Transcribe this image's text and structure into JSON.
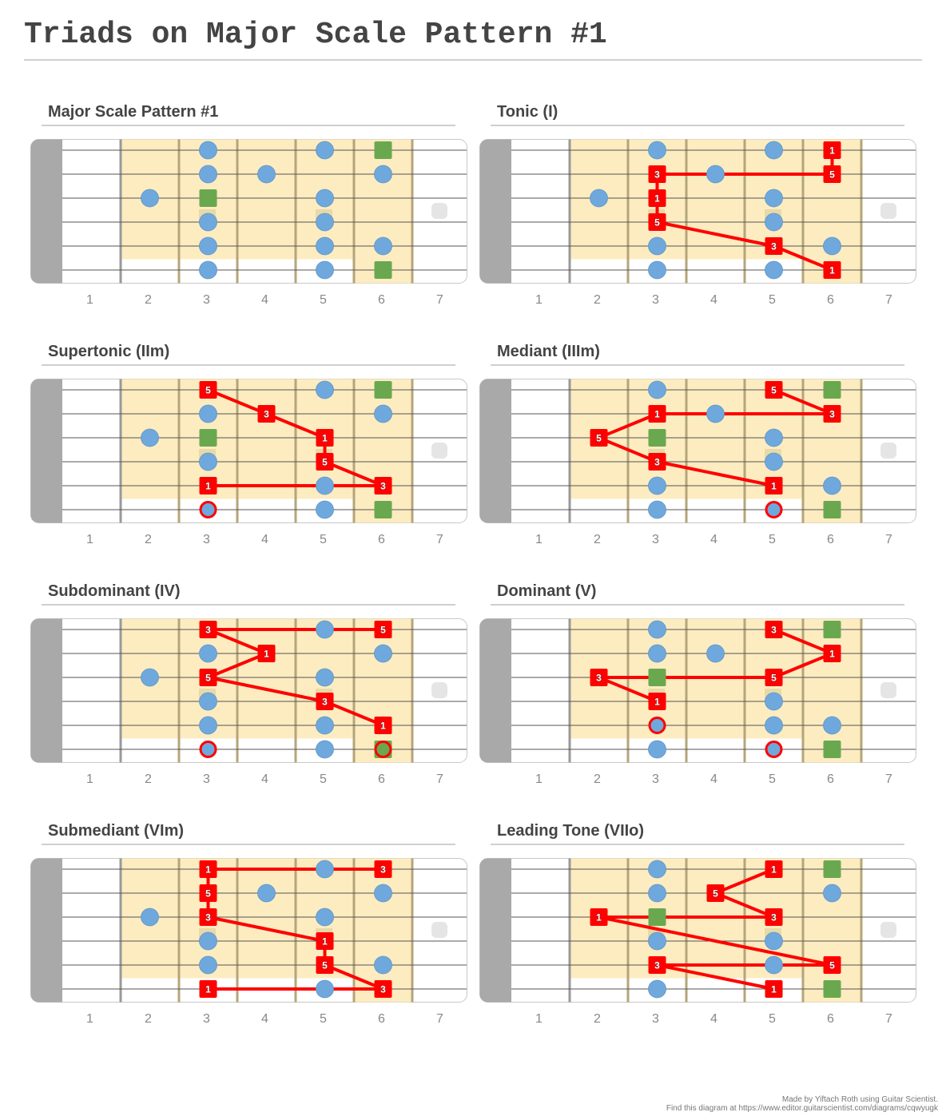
{
  "title": "Triads on Major Scale Pattern #1",
  "colors": {
    "scale_note": "#6fa8dc",
    "root_note": "#6aa84f",
    "triad_note": "#ff0000",
    "pattern_bg": "#fcecc0",
    "nut": "#a9a9a9"
  },
  "fret_numbers": [
    "1",
    "2",
    "3",
    "4",
    "5",
    "6",
    "7"
  ],
  "diagrams": [
    {
      "title": "Major Scale Pattern #1",
      "notes": [
        {
          "fret": 3,
          "string": 1,
          "type": "scale"
        },
        {
          "fret": 5,
          "string": 1,
          "type": "scale"
        },
        {
          "fret": 6,
          "string": 1,
          "type": "root"
        },
        {
          "fret": 3,
          "string": 2,
          "type": "scale"
        },
        {
          "fret": 4,
          "string": 2,
          "type": "scale"
        },
        {
          "fret": 6,
          "string": 2,
          "type": "scale"
        },
        {
          "fret": 2,
          "string": 3,
          "type": "scale"
        },
        {
          "fret": 3,
          "string": 3,
          "type": "root"
        },
        {
          "fret": 5,
          "string": 3,
          "type": "scale"
        },
        {
          "fret": 3,
          "string": 4,
          "type": "scale"
        },
        {
          "fret": 5,
          "string": 4,
          "type": "scale"
        },
        {
          "fret": 3,
          "string": 5,
          "type": "scale"
        },
        {
          "fret": 5,
          "string": 5,
          "type": "scale"
        },
        {
          "fret": 6,
          "string": 5,
          "type": "scale"
        },
        {
          "fret": 3,
          "string": 6,
          "type": "scale"
        },
        {
          "fret": 5,
          "string": 6,
          "type": "scale"
        },
        {
          "fret": 6,
          "string": 6,
          "type": "root"
        }
      ],
      "lines": []
    },
    {
      "title": "Tonic (I)",
      "notes": [
        {
          "fret": 3,
          "string": 1,
          "type": "scale"
        },
        {
          "fret": 5,
          "string": 1,
          "type": "scale"
        },
        {
          "fret": 6,
          "string": 1,
          "type": "triad",
          "label": "1"
        },
        {
          "fret": 3,
          "string": 2,
          "type": "triad",
          "label": "3"
        },
        {
          "fret": 4,
          "string": 2,
          "type": "scale"
        },
        {
          "fret": 6,
          "string": 2,
          "type": "triad",
          "label": "5"
        },
        {
          "fret": 2,
          "string": 3,
          "type": "scale"
        },
        {
          "fret": 3,
          "string": 3,
          "type": "triad",
          "label": "1"
        },
        {
          "fret": 5,
          "string": 3,
          "type": "scale"
        },
        {
          "fret": 3,
          "string": 4,
          "type": "triad",
          "label": "5"
        },
        {
          "fret": 5,
          "string": 4,
          "type": "scale"
        },
        {
          "fret": 3,
          "string": 5,
          "type": "scale"
        },
        {
          "fret": 5,
          "string": 5,
          "type": "triad",
          "label": "3"
        },
        {
          "fret": 6,
          "string": 5,
          "type": "scale"
        },
        {
          "fret": 3,
          "string": 6,
          "type": "scale"
        },
        {
          "fret": 5,
          "string": 6,
          "type": "scale"
        },
        {
          "fret": 6,
          "string": 6,
          "type": "triad",
          "label": "1"
        }
      ],
      "lines": [
        [
          [
            6,
            1
          ],
          [
            6,
            2
          ]
        ],
        [
          [
            3,
            2
          ],
          [
            6,
            2
          ]
        ],
        [
          [
            3,
            2
          ],
          [
            3,
            3
          ]
        ],
        [
          [
            3,
            3
          ],
          [
            3,
            4
          ]
        ],
        [
          [
            3,
            4
          ],
          [
            5,
            5
          ]
        ],
        [
          [
            5,
            5
          ],
          [
            6,
            6
          ]
        ]
      ]
    },
    {
      "title": "Supertonic (IIm)",
      "notes": [
        {
          "fret": 3,
          "string": 1,
          "type": "triad",
          "label": "5"
        },
        {
          "fret": 5,
          "string": 1,
          "type": "scale"
        },
        {
          "fret": 6,
          "string": 1,
          "type": "root"
        },
        {
          "fret": 3,
          "string": 2,
          "type": "scale"
        },
        {
          "fret": 4,
          "string": 2,
          "type": "triad",
          "label": "3"
        },
        {
          "fret": 6,
          "string": 2,
          "type": "scale"
        },
        {
          "fret": 2,
          "string": 3,
          "type": "scale"
        },
        {
          "fret": 3,
          "string": 3,
          "type": "root"
        },
        {
          "fret": 5,
          "string": 3,
          "type": "triad",
          "label": "1"
        },
        {
          "fret": 3,
          "string": 4,
          "type": "scale"
        },
        {
          "fret": 5,
          "string": 4,
          "type": "triad",
          "label": "5"
        },
        {
          "fret": 3,
          "string": 5,
          "type": "triad",
          "label": "1"
        },
        {
          "fret": 5,
          "string": 5,
          "type": "scale"
        },
        {
          "fret": 6,
          "string": 5,
          "type": "triad",
          "label": "3"
        },
        {
          "fret": 3,
          "string": 6,
          "type": "scale",
          "ring": true
        },
        {
          "fret": 5,
          "string": 6,
          "type": "scale"
        },
        {
          "fret": 6,
          "string": 6,
          "type": "root"
        }
      ],
      "lines": [
        [
          [
            3,
            1
          ],
          [
            4,
            2
          ]
        ],
        [
          [
            4,
            2
          ],
          [
            5,
            3
          ]
        ],
        [
          [
            5,
            3
          ],
          [
            5,
            4
          ]
        ],
        [
          [
            5,
            4
          ],
          [
            6,
            5
          ]
        ],
        [
          [
            3,
            5
          ],
          [
            6,
            5
          ]
        ]
      ]
    },
    {
      "title": "Mediant (IIIm)",
      "notes": [
        {
          "fret": 3,
          "string": 1,
          "type": "scale"
        },
        {
          "fret": 5,
          "string": 1,
          "type": "triad",
          "label": "5"
        },
        {
          "fret": 6,
          "string": 1,
          "type": "root"
        },
        {
          "fret": 3,
          "string": 2,
          "type": "triad",
          "label": "1"
        },
        {
          "fret": 4,
          "string": 2,
          "type": "scale"
        },
        {
          "fret": 6,
          "string": 2,
          "type": "triad",
          "label": "3"
        },
        {
          "fret": 2,
          "string": 3,
          "type": "triad",
          "label": "5"
        },
        {
          "fret": 3,
          "string": 3,
          "type": "root"
        },
        {
          "fret": 5,
          "string": 3,
          "type": "scale"
        },
        {
          "fret": 3,
          "string": 4,
          "type": "triad",
          "label": "3"
        },
        {
          "fret": 5,
          "string": 4,
          "type": "scale"
        },
        {
          "fret": 3,
          "string": 5,
          "type": "scale"
        },
        {
          "fret": 5,
          "string": 5,
          "type": "triad",
          "label": "1"
        },
        {
          "fret": 6,
          "string": 5,
          "type": "scale"
        },
        {
          "fret": 3,
          "string": 6,
          "type": "scale"
        },
        {
          "fret": 5,
          "string": 6,
          "type": "scale",
          "ring": true
        },
        {
          "fret": 6,
          "string": 6,
          "type": "root"
        }
      ],
      "lines": [
        [
          [
            5,
            1
          ],
          [
            6,
            2
          ]
        ],
        [
          [
            3,
            2
          ],
          [
            6,
            2
          ]
        ],
        [
          [
            3,
            2
          ],
          [
            2,
            3
          ]
        ],
        [
          [
            2,
            3
          ],
          [
            3,
            4
          ]
        ],
        [
          [
            3,
            4
          ],
          [
            5,
            5
          ]
        ]
      ]
    },
    {
      "title": "Subdominant (IV)",
      "notes": [
        {
          "fret": 3,
          "string": 1,
          "type": "triad",
          "label": "3"
        },
        {
          "fret": 5,
          "string": 1,
          "type": "scale"
        },
        {
          "fret": 6,
          "string": 1,
          "type": "triad",
          "label": "5"
        },
        {
          "fret": 3,
          "string": 2,
          "type": "scale"
        },
        {
          "fret": 4,
          "string": 2,
          "type": "triad",
          "label": "1"
        },
        {
          "fret": 6,
          "string": 2,
          "type": "scale"
        },
        {
          "fret": 2,
          "string": 3,
          "type": "scale"
        },
        {
          "fret": 3,
          "string": 3,
          "type": "triad",
          "label": "5"
        },
        {
          "fret": 5,
          "string": 3,
          "type": "scale"
        },
        {
          "fret": 3,
          "string": 4,
          "type": "scale"
        },
        {
          "fret": 5,
          "string": 4,
          "type": "triad",
          "label": "3"
        },
        {
          "fret": 3,
          "string": 5,
          "type": "scale"
        },
        {
          "fret": 5,
          "string": 5,
          "type": "scale"
        },
        {
          "fret": 6,
          "string": 5,
          "type": "triad",
          "label": "1"
        },
        {
          "fret": 3,
          "string": 6,
          "type": "scale",
          "ring": true
        },
        {
          "fret": 5,
          "string": 6,
          "type": "scale"
        },
        {
          "fret": 6,
          "string": 6,
          "type": "root",
          "ring": true
        }
      ],
      "lines": [
        [
          [
            3,
            1
          ],
          [
            6,
            1
          ]
        ],
        [
          [
            3,
            1
          ],
          [
            4,
            2
          ]
        ],
        [
          [
            4,
            2
          ],
          [
            3,
            3
          ]
        ],
        [
          [
            3,
            3
          ],
          [
            5,
            4
          ]
        ],
        [
          [
            5,
            4
          ],
          [
            6,
            5
          ]
        ]
      ]
    },
    {
      "title": "Dominant (V)",
      "notes": [
        {
          "fret": 3,
          "string": 1,
          "type": "scale"
        },
        {
          "fret": 5,
          "string": 1,
          "type": "triad",
          "label": "3"
        },
        {
          "fret": 6,
          "string": 1,
          "type": "root"
        },
        {
          "fret": 3,
          "string": 2,
          "type": "scale"
        },
        {
          "fret": 4,
          "string": 2,
          "type": "scale"
        },
        {
          "fret": 6,
          "string": 2,
          "type": "triad",
          "label": "1"
        },
        {
          "fret": 2,
          "string": 3,
          "type": "triad",
          "label": "3"
        },
        {
          "fret": 3,
          "string": 3,
          "type": "root"
        },
        {
          "fret": 5,
          "string": 3,
          "type": "triad",
          "label": "5"
        },
        {
          "fret": 3,
          "string": 4,
          "type": "triad",
          "label": "1"
        },
        {
          "fret": 5,
          "string": 4,
          "type": "scale"
        },
        {
          "fret": 3,
          "string": 5,
          "type": "scale",
          "ring": true
        },
        {
          "fret": 5,
          "string": 5,
          "type": "scale"
        },
        {
          "fret": 6,
          "string": 5,
          "type": "scale"
        },
        {
          "fret": 3,
          "string": 6,
          "type": "scale"
        },
        {
          "fret": 5,
          "string": 6,
          "type": "scale",
          "ring": true
        },
        {
          "fret": 6,
          "string": 6,
          "type": "root"
        }
      ],
      "lines": [
        [
          [
            5,
            1
          ],
          [
            6,
            2
          ]
        ],
        [
          [
            6,
            2
          ],
          [
            5,
            3
          ]
        ],
        [
          [
            2,
            3
          ],
          [
            5,
            3
          ]
        ],
        [
          [
            2,
            3
          ],
          [
            3,
            4
          ]
        ]
      ]
    },
    {
      "title": "Submediant (VIm)",
      "notes": [
        {
          "fret": 3,
          "string": 1,
          "type": "triad",
          "label": "1"
        },
        {
          "fret": 5,
          "string": 1,
          "type": "scale"
        },
        {
          "fret": 6,
          "string": 1,
          "type": "triad",
          "label": "3"
        },
        {
          "fret": 3,
          "string": 2,
          "type": "triad",
          "label": "5"
        },
        {
          "fret": 4,
          "string": 2,
          "type": "scale"
        },
        {
          "fret": 6,
          "string": 2,
          "type": "scale"
        },
        {
          "fret": 2,
          "string": 3,
          "type": "scale"
        },
        {
          "fret": 3,
          "string": 3,
          "type": "triad",
          "label": "3"
        },
        {
          "fret": 5,
          "string": 3,
          "type": "scale"
        },
        {
          "fret": 3,
          "string": 4,
          "type": "scale"
        },
        {
          "fret": 5,
          "string": 4,
          "type": "triad",
          "label": "1"
        },
        {
          "fret": 3,
          "string": 5,
          "type": "scale"
        },
        {
          "fret": 5,
          "string": 5,
          "type": "triad",
          "label": "5"
        },
        {
          "fret": 6,
          "string": 5,
          "type": "scale"
        },
        {
          "fret": 3,
          "string": 6,
          "type": "triad",
          "label": "1"
        },
        {
          "fret": 5,
          "string": 6,
          "type": "scale"
        },
        {
          "fret": 6,
          "string": 6,
          "type": "triad",
          "label": "3"
        }
      ],
      "lines": [
        [
          [
            3,
            1
          ],
          [
            6,
            1
          ]
        ],
        [
          [
            3,
            1
          ],
          [
            3,
            2
          ]
        ],
        [
          [
            3,
            2
          ],
          [
            3,
            3
          ]
        ],
        [
          [
            3,
            3
          ],
          [
            5,
            4
          ]
        ],
        [
          [
            5,
            4
          ],
          [
            5,
            5
          ]
        ],
        [
          [
            5,
            5
          ],
          [
            6,
            6
          ]
        ],
        [
          [
            3,
            6
          ],
          [
            6,
            6
          ]
        ]
      ]
    },
    {
      "title": "Leading Tone (VIIo)",
      "notes": [
        {
          "fret": 3,
          "string": 1,
          "type": "scale"
        },
        {
          "fret": 5,
          "string": 1,
          "type": "triad",
          "label": "1"
        },
        {
          "fret": 6,
          "string": 1,
          "type": "root"
        },
        {
          "fret": 3,
          "string": 2,
          "type": "scale"
        },
        {
          "fret": 4,
          "string": 2,
          "type": "triad",
          "label": "5"
        },
        {
          "fret": 6,
          "string": 2,
          "type": "scale"
        },
        {
          "fret": 2,
          "string": 3,
          "type": "triad",
          "label": "1"
        },
        {
          "fret": 3,
          "string": 3,
          "type": "root"
        },
        {
          "fret": 5,
          "string": 3,
          "type": "triad",
          "label": "3"
        },
        {
          "fret": 3,
          "string": 4,
          "type": "scale"
        },
        {
          "fret": 5,
          "string": 4,
          "type": "scale"
        },
        {
          "fret": 3,
          "string": 5,
          "type": "triad",
          "label": "3"
        },
        {
          "fret": 5,
          "string": 5,
          "type": "scale"
        },
        {
          "fret": 6,
          "string": 5,
          "type": "triad",
          "label": "5"
        },
        {
          "fret": 3,
          "string": 6,
          "type": "scale"
        },
        {
          "fret": 5,
          "string": 6,
          "type": "triad",
          "label": "1"
        },
        {
          "fret": 6,
          "string": 6,
          "type": "root"
        }
      ],
      "lines": [
        [
          [
            5,
            1
          ],
          [
            4,
            2
          ]
        ],
        [
          [
            4,
            2
          ],
          [
            5,
            3
          ]
        ],
        [
          [
            2,
            3
          ],
          [
            5,
            3
          ]
        ],
        [
          [
            2,
            3
          ],
          [
            6,
            5
          ]
        ],
        [
          [
            3,
            5
          ],
          [
            6,
            5
          ]
        ],
        [
          [
            3,
            5
          ],
          [
            5,
            6
          ]
        ]
      ]
    }
  ],
  "footer": {
    "line1": "Made by Yiftach Roth using Guitar Scientist.",
    "line2": "Find this diagram at https://www.editor.guitarscientist.com/diagrams/cqwyugk"
  }
}
